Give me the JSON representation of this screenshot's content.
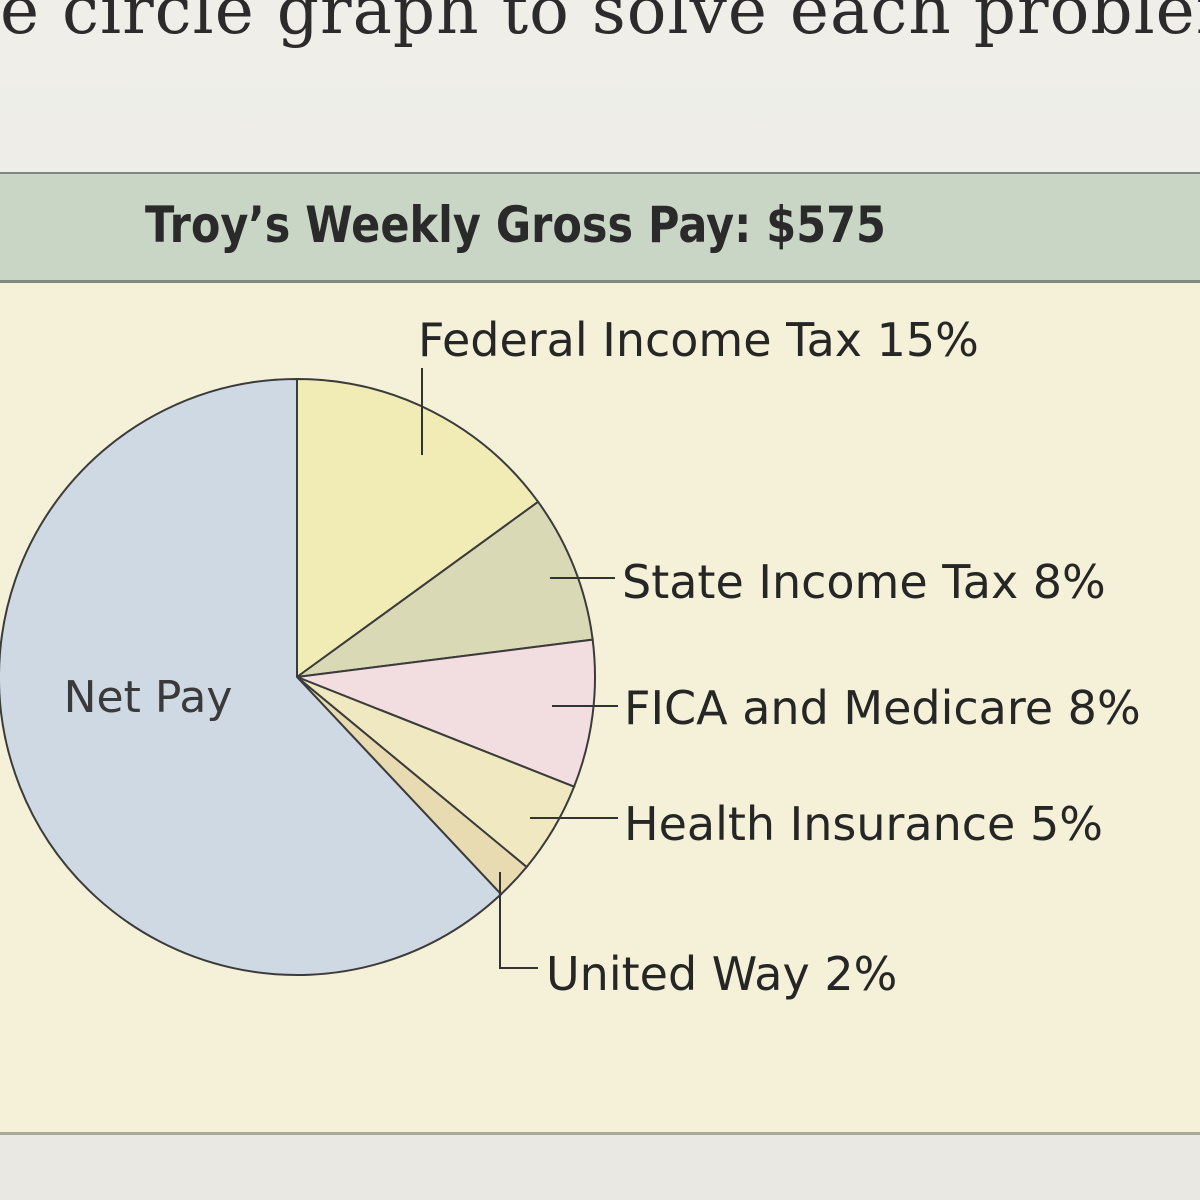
{
  "page": {
    "instruction_text": "e circle graph to solve each problem."
  },
  "chart_data": {
    "type": "pie",
    "title": "Troy’s Weekly Gross Pay: $575",
    "slices": [
      {
        "name": "Federal Income Tax",
        "value": 15,
        "label": "Federal Income Tax 15%",
        "color": "#f1ebb5"
      },
      {
        "name": "State Income Tax",
        "value": 8,
        "label": "State Income Tax 8%",
        "color": "#dad9b6"
      },
      {
        "name": "FICA and Medicare",
        "value": 8,
        "label": "FICA and Medicare 8%",
        "color": "#f2dde0"
      },
      {
        "name": "Health Insurance",
        "value": 5,
        "label": "Health Insurance 5%",
        "color": "#efe8c0"
      },
      {
        "name": "United Way",
        "value": 2,
        "label": "United Way 2%",
        "color": "#e8dbb2"
      },
      {
        "name": "Net Pay",
        "value": 62,
        "label": "Net Pay",
        "color": "#cfd9e4"
      }
    ]
  }
}
